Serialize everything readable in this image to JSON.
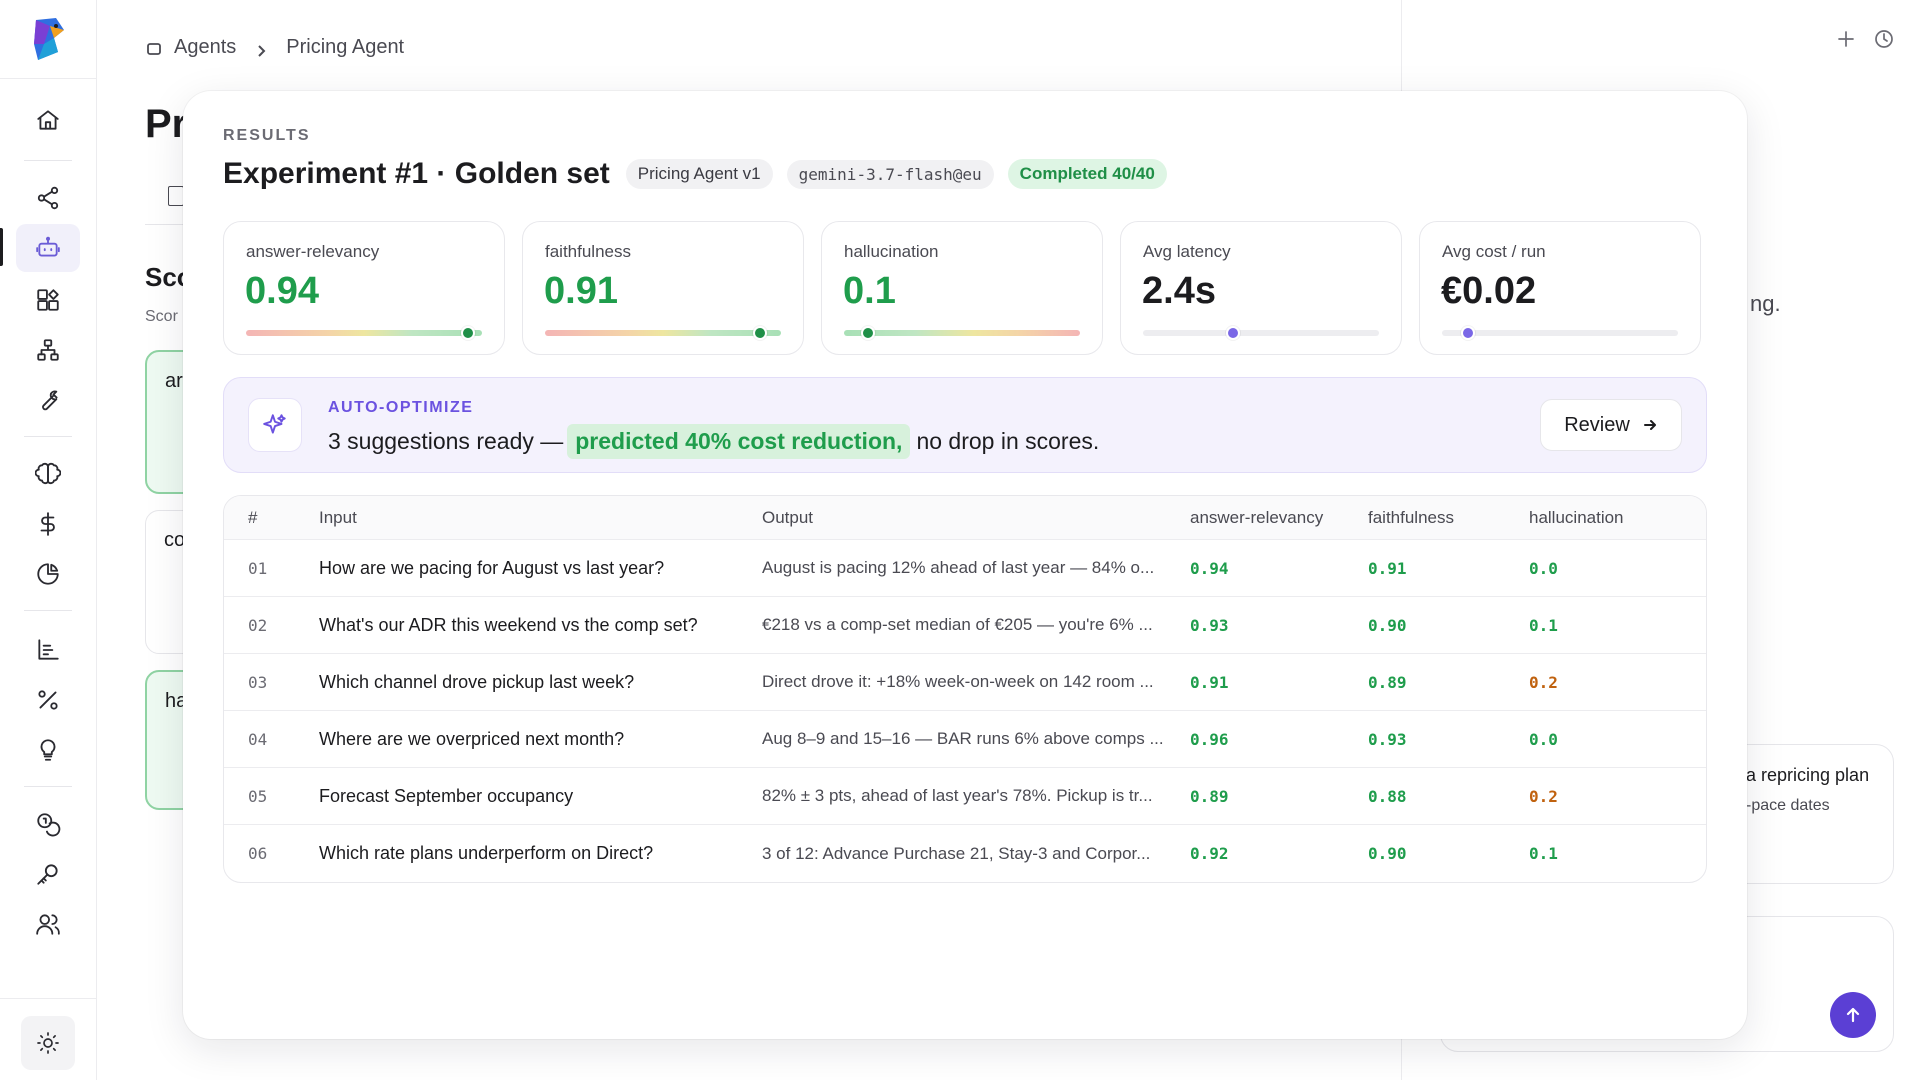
{
  "breadcrumb": {
    "root": "Agents",
    "current": "Pricing Agent"
  },
  "background": {
    "page_title_fragment": "Pr",
    "section_fragment": "Sco",
    "subtitle_fragment": "Scor",
    "card_fragments": [
      "ar",
      "co",
      "ha"
    ],
    "right_fragment": "ng.",
    "right_card_title": "a repricing plan",
    "right_card_sub": "-pace dates"
  },
  "modal": {
    "overline": "RESULTS",
    "title": "Experiment #1 · Golden set",
    "pills": {
      "agent": "Pricing Agent v1",
      "model": "gemini-3.7-flash@eu",
      "status": "Completed 40/40"
    },
    "metrics": [
      {
        "label": "answer-relevancy",
        "value": "0.94",
        "level": 0.94,
        "scale": "good"
      },
      {
        "label": "faithfulness",
        "value": "0.91",
        "level": 0.91,
        "scale": "good"
      },
      {
        "label": "hallucination",
        "value": "0.1",
        "level": 0.1,
        "scale": "bad"
      },
      {
        "label": "Avg latency",
        "value": "2.4s",
        "level": 0.38,
        "scale": "neutral"
      },
      {
        "label": "Avg cost / run",
        "value": "€0.02",
        "level": 0.11,
        "scale": "neutral"
      }
    ],
    "banner": {
      "label": "AUTO-OPTIMIZE",
      "text_before": "3 suggestions ready —",
      "highlight": "predicted 40% cost reduction,",
      "text_after": "no drop in scores.",
      "button": "Review"
    },
    "table": {
      "headers": [
        "#",
        "Input",
        "Output",
        "answer-relevancy",
        "faithfulness",
        "hallucination"
      ],
      "rows": [
        {
          "num": "01",
          "input": "How are we pacing for August vs last year?",
          "output": "August is pacing 12% ahead of last year — 84% o...",
          "ar": "0.94",
          "fa": "0.91",
          "ha": "0.0",
          "ha_tone": "g"
        },
        {
          "num": "02",
          "input": "What's our ADR this weekend vs the comp set?",
          "output": "€218 vs a comp-set median of €205 — you're 6% ...",
          "ar": "0.93",
          "fa": "0.90",
          "ha": "0.1",
          "ha_tone": "g"
        },
        {
          "num": "03",
          "input": "Which channel drove pickup last week?",
          "output": "Direct drove it: +18% week-on-week on 142 room ...",
          "ar": "0.91",
          "fa": "0.89",
          "ha": "0.2",
          "ha_tone": "o"
        },
        {
          "num": "04",
          "input": "Where are we overpriced next month?",
          "output": "Aug 8–9 and 15–16 — BAR runs 6% above comps ...",
          "ar": "0.96",
          "fa": "0.93",
          "ha": "0.0",
          "ha_tone": "g"
        },
        {
          "num": "05",
          "input": "Forecast September occupancy",
          "output": "82% ± 3 pts, ahead of last year's 78%. Pickup is tr...",
          "ar": "0.89",
          "fa": "0.88",
          "ha": "0.2",
          "ha_tone": "o"
        },
        {
          "num": "06",
          "input": "Which rate plans underperform on Direct?",
          "output": "3 of 12: Advance Purchase 21, Stay-3 and Corpor...",
          "ar": "0.92",
          "fa": "0.90",
          "ha": "0.1",
          "ha_tone": "g"
        }
      ]
    }
  },
  "colors": {
    "accent": "#6b52e0",
    "good": "#1f9d4c",
    "warn": "#c0620f",
    "send": "#5b3fd4"
  },
  "icons": {
    "rail": [
      "home-icon",
      "share-icon",
      "bot-icon",
      "apps-icon",
      "sitemap-icon",
      "wrench-icon",
      "brain-icon",
      "dollar-icon",
      "pie-chart-icon",
      "bar-chart-icon",
      "percent-icon",
      "lightbulb-icon",
      "coins-icon",
      "key-icon",
      "users-icon",
      "sun-icon"
    ]
  }
}
